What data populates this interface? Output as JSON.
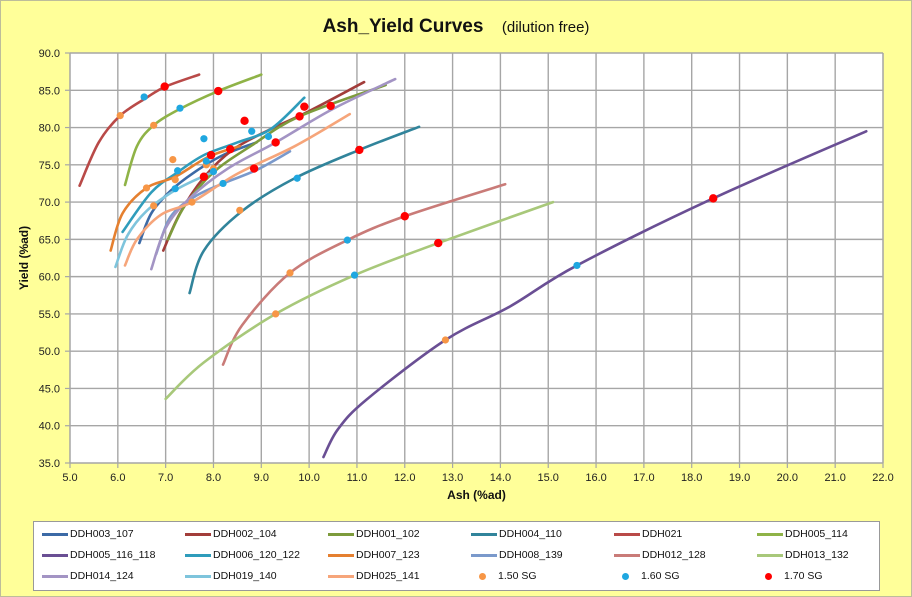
{
  "chart_data": {
    "type": "line",
    "title": "Ash_Yield Curves",
    "subtitle": "(dilution free)",
    "xlabel": "Ash (%ad)",
    "ylabel": "Yield (%ad)",
    "xlim": [
      5.0,
      22.0
    ],
    "ylim": [
      35.0,
      90.0
    ],
    "x_ticks": [
      "5.0",
      "6.0",
      "7.0",
      "8.0",
      "9.0",
      "10.0",
      "11.0",
      "12.0",
      "13.0",
      "14.0",
      "15.0",
      "16.0",
      "17.0",
      "18.0",
      "19.0",
      "20.0",
      "21.0",
      "22.0"
    ],
    "y_ticks": [
      "35.0",
      "40.0",
      "45.0",
      "50.0",
      "55.0",
      "60.0",
      "65.0",
      "70.0",
      "75.0",
      "80.0",
      "85.0",
      "90.0"
    ],
    "grid": true,
    "legend_position": "bottom",
    "series": [
      {
        "name": "DDH003_107",
        "color": "#3c6aa6",
        "points": [
          [
            6.45,
            64.5
          ],
          [
            6.7,
            68.5
          ],
          [
            7.1,
            71.5
          ],
          [
            7.6,
            74.0
          ],
          [
            8.2,
            76.3
          ],
          [
            8.9,
            78.0
          ]
        ]
      },
      {
        "name": "DDH002_104",
        "color": "#a23d3a",
        "points": [
          [
            6.95,
            63.5
          ],
          [
            7.3,
            68.5
          ],
          [
            7.8,
            73.3
          ],
          [
            8.4,
            77.0
          ],
          [
            9.2,
            79.8
          ],
          [
            10.0,
            82.2
          ],
          [
            11.15,
            86.1
          ]
        ]
      },
      {
        "name": "DDH001_102",
        "color": "#7d9b3c",
        "points": [
          [
            7.05,
            65.0
          ],
          [
            7.4,
            69.5
          ],
          [
            8.0,
            74.0
          ],
          [
            8.8,
            77.6
          ],
          [
            9.8,
            81.5
          ],
          [
            11.6,
            85.7
          ]
        ]
      },
      {
        "name": "DDH004_110",
        "color": "#31849b",
        "points": [
          [
            7.5,
            57.8
          ],
          [
            7.8,
            63.5
          ],
          [
            8.6,
            68.8
          ],
          [
            9.7,
            73.2
          ],
          [
            11.05,
            77.0
          ],
          [
            12.3,
            80.1
          ]
        ]
      },
      {
        "name": "DDH021",
        "color": "#b94a48",
        "points": [
          [
            5.2,
            72.2
          ],
          [
            5.6,
            78.0
          ],
          [
            6.05,
            81.6
          ],
          [
            6.6,
            84.0
          ],
          [
            7.0,
            85.5
          ],
          [
            7.7,
            87.1
          ]
        ]
      },
      {
        "name": "DDH005_114",
        "color": "#8fb347",
        "points": [
          [
            6.15,
            72.3
          ],
          [
            6.4,
            77.5
          ],
          [
            6.75,
            80.3
          ],
          [
            7.3,
            82.5
          ],
          [
            8.1,
            84.9
          ],
          [
            9.0,
            87.1
          ]
        ]
      },
      {
        "name": "DDH005_116_118",
        "color": "#6a4f94",
        "points": [
          [
            10.3,
            35.8
          ],
          [
            10.6,
            39.5
          ],
          [
            11.2,
            43.5
          ],
          [
            12.85,
            51.5
          ],
          [
            14.2,
            56.0
          ],
          [
            15.6,
            61.5
          ],
          [
            18.45,
            70.5
          ],
          [
            21.65,
            79.5
          ]
        ]
      },
      {
        "name": "DDH006_120_122",
        "color": "#2f9cbb",
        "points": [
          [
            6.1,
            66.0
          ],
          [
            6.7,
            71.3
          ],
          [
            7.25,
            74.0
          ],
          [
            7.8,
            76.3
          ],
          [
            8.5,
            78.0
          ],
          [
            9.2,
            79.8
          ],
          [
            9.9,
            84.0
          ]
        ]
      },
      {
        "name": "DDH007_123",
        "color": "#e58030",
        "points": [
          [
            5.85,
            63.5
          ],
          [
            6.1,
            68.5
          ],
          [
            6.6,
            71.9
          ],
          [
            7.2,
            73.4
          ],
          [
            7.9,
            76.1
          ],
          [
            8.55,
            77.5
          ]
        ]
      },
      {
        "name": "DDH008_139",
        "color": "#7a99cb",
        "points": [
          [
            6.8,
            63.0
          ],
          [
            7.1,
            68.0
          ],
          [
            7.6,
            70.7
          ],
          [
            8.2,
            72.5
          ],
          [
            8.9,
            74.3
          ],
          [
            9.6,
            76.8
          ]
        ]
      },
      {
        "name": "DDH012_128",
        "color": "#c97b78",
        "points": [
          [
            8.2,
            48.2
          ],
          [
            8.6,
            53.5
          ],
          [
            9.6,
            60.5
          ],
          [
            10.8,
            64.9
          ],
          [
            12.0,
            68.1
          ],
          [
            14.1,
            72.4
          ]
        ]
      },
      {
        "name": "DDH013_132",
        "color": "#a8c87a",
        "points": [
          [
            7.0,
            43.6
          ],
          [
            7.8,
            48.5
          ],
          [
            9.3,
            55.0
          ],
          [
            10.95,
            60.2
          ],
          [
            12.7,
            64.5
          ],
          [
            15.1,
            70.0
          ]
        ]
      },
      {
        "name": "DDH014_124",
        "color": "#a394c4",
        "points": [
          [
            6.7,
            61.0
          ],
          [
            7.0,
            66.5
          ],
          [
            7.5,
            70.5
          ],
          [
            8.3,
            74.5
          ],
          [
            9.3,
            78.0
          ],
          [
            10.5,
            82.5
          ],
          [
            11.8,
            86.5
          ]
        ]
      },
      {
        "name": "DDH019_140",
        "color": "#7ec4dc",
        "points": [
          [
            5.95,
            61.3
          ],
          [
            6.2,
            65.5
          ],
          [
            6.6,
            68.8
          ],
          [
            7.2,
            71.6
          ],
          [
            7.8,
            73.5
          ],
          [
            8.0,
            74.0
          ]
        ]
      },
      {
        "name": "DDH025_141",
        "color": "#f6a57a",
        "points": [
          [
            6.15,
            61.5
          ],
          [
            6.4,
            65.0
          ],
          [
            6.9,
            68.3
          ],
          [
            7.55,
            70.0
          ],
          [
            8.5,
            73.8
          ],
          [
            9.7,
            77.5
          ],
          [
            10.85,
            81.8
          ]
        ]
      }
    ],
    "markers": [
      {
        "name": "1.50 SG",
        "color": "#f79646",
        "points": [
          [
            6.05,
            81.6
          ],
          [
            6.75,
            80.3
          ],
          [
            7.15,
            75.7
          ],
          [
            6.6,
            71.9
          ],
          [
            6.75,
            69.5
          ],
          [
            7.2,
            73.0
          ],
          [
            7.55,
            70.0
          ],
          [
            7.85,
            75.0
          ],
          [
            8.0,
            74.5
          ],
          [
            8.55,
            68.9
          ],
          [
            9.6,
            60.5
          ],
          [
            9.3,
            55.0
          ],
          [
            12.85,
            51.5
          ]
        ]
      },
      {
        "name": "1.60 SG",
        "color": "#1fa7e0",
        "points": [
          [
            6.55,
            84.1
          ],
          [
            7.3,
            82.6
          ],
          [
            7.8,
            78.5
          ],
          [
            7.25,
            74.2
          ],
          [
            7.2,
            71.8
          ],
          [
            7.85,
            75.5
          ],
          [
            8.0,
            74.1
          ],
          [
            8.2,
            72.5
          ],
          [
            8.8,
            79.5
          ],
          [
            9.15,
            78.8
          ],
          [
            9.75,
            73.2
          ],
          [
            10.8,
            64.9
          ],
          [
            10.95,
            60.2
          ],
          [
            15.6,
            61.5
          ]
        ]
      },
      {
        "name": "1.70 SG",
        "color": "#ff0000",
        "points": [
          [
            6.98,
            85.5
          ],
          [
            8.1,
            84.9
          ],
          [
            8.65,
            80.9
          ],
          [
            7.95,
            76.3
          ],
          [
            8.35,
            77.1
          ],
          [
            7.8,
            73.4
          ],
          [
            9.3,
            78.0
          ],
          [
            8.85,
            74.5
          ],
          [
            9.9,
            82.8
          ],
          [
            10.45,
            82.9
          ],
          [
            9.8,
            81.5
          ],
          [
            11.05,
            77.0
          ],
          [
            12.0,
            68.1
          ],
          [
            12.7,
            64.5
          ],
          [
            18.45,
            70.5
          ]
        ]
      }
    ]
  },
  "legend": {
    "items": [
      {
        "label": "DDH003_107",
        "kind": "line",
        "color": "#3c6aa6"
      },
      {
        "label": "DDH002_104",
        "kind": "line",
        "color": "#a23d3a"
      },
      {
        "label": "DDH001_102",
        "kind": "line",
        "color": "#7d9b3c"
      },
      {
        "label": "DDH004_110",
        "kind": "line",
        "color": "#31849b"
      },
      {
        "label": "DDH021",
        "kind": "line",
        "color": "#b94a48"
      },
      {
        "label": "DDH005_114",
        "kind": "line",
        "color": "#8fb347"
      },
      {
        "label": "DDH005_116_118",
        "kind": "line",
        "color": "#6a4f94"
      },
      {
        "label": "DDH006_120_122",
        "kind": "line",
        "color": "#2f9cbb"
      },
      {
        "label": "DDH007_123",
        "kind": "line",
        "color": "#e58030"
      },
      {
        "label": "DDH008_139",
        "kind": "line",
        "color": "#7a99cb"
      },
      {
        "label": "DDH012_128",
        "kind": "line",
        "color": "#c97b78"
      },
      {
        "label": "DDH013_132",
        "kind": "line",
        "color": "#a8c87a"
      },
      {
        "label": "DDH014_124",
        "kind": "line",
        "color": "#a394c4"
      },
      {
        "label": "DDH019_140",
        "kind": "line",
        "color": "#7ec4dc"
      },
      {
        "label": "DDH025_141",
        "kind": "line",
        "color": "#f6a57a"
      },
      {
        "label": "1.50 SG",
        "kind": "dot",
        "color": "#f79646"
      },
      {
        "label": "1.60 SG",
        "kind": "dot",
        "color": "#1fa7e0"
      },
      {
        "label": "1.70 SG",
        "kind": "dot",
        "color": "#ff0000"
      }
    ]
  }
}
